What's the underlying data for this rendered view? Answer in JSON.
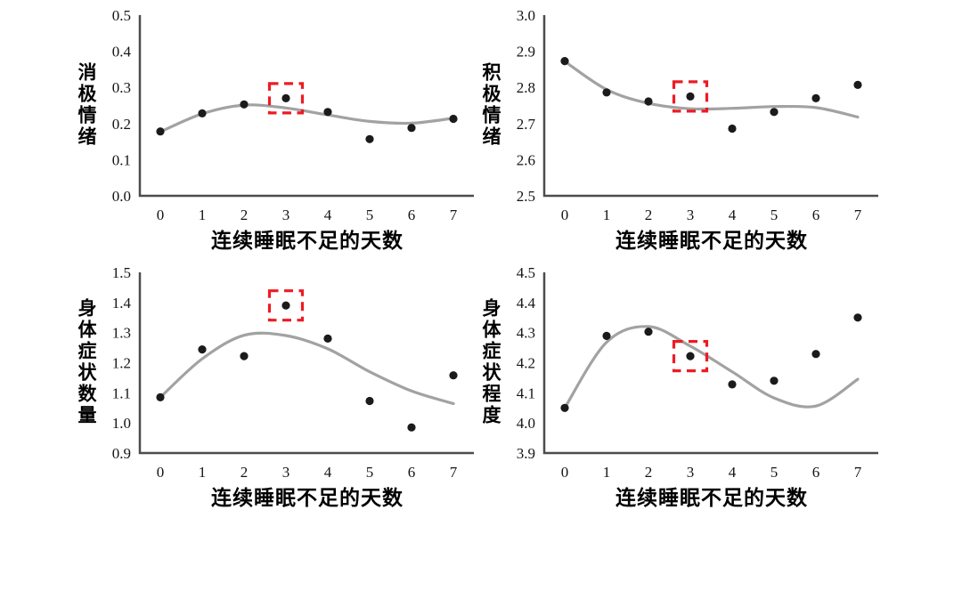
{
  "figure": {
    "background": "#ffffff",
    "layout": "2x2-panel-grid",
    "highlight_note": "red dashed box marks day-3 data point in every panel"
  },
  "colors": {
    "point": "#1b1b1b",
    "line": "#a2a2a2",
    "axis": "#4c4c4e",
    "tick_text": "#141414",
    "highlight": "#ec1c24"
  },
  "chart_data": [
    {
      "type": "scatter",
      "panel": "top-left",
      "ylabel": "消极情绪",
      "xlabel": "连续睡眠不足的天数",
      "x": [
        0,
        1,
        2,
        3,
        4,
        5,
        6,
        7
      ],
      "xticks": [
        "0",
        "1",
        "2",
        "3",
        "4",
        "5",
        "6",
        "7"
      ],
      "points": [
        0.178,
        0.228,
        0.253,
        0.27,
        0.232,
        0.157,
        0.188,
        0.213
      ],
      "fit_line": [
        0.177,
        0.227,
        0.251,
        0.243,
        0.224,
        0.206,
        0.201,
        0.215
      ],
      "ylim": [
        0.0,
        0.5
      ],
      "yticks": [
        "0.0",
        "0.1",
        "0.2",
        "0.3",
        "0.4",
        "0.5"
      ],
      "highlight_index": 3,
      "grid": false,
      "legend": "none"
    },
    {
      "type": "scatter",
      "panel": "top-right",
      "ylabel": "积极情绪",
      "xlabel": "连续睡眠不足的天数",
      "x": [
        0,
        1,
        2,
        3,
        4,
        5,
        6,
        7
      ],
      "xticks": [
        "0",
        "1",
        "2",
        "3",
        "4",
        "5",
        "6",
        "7"
      ],
      "points": [
        2.873,
        2.786,
        2.761,
        2.775,
        2.686,
        2.732,
        2.77,
        2.807
      ],
      "fit_line": [
        2.872,
        2.794,
        2.756,
        2.741,
        2.742,
        2.747,
        2.744,
        2.718
      ],
      "ylim": [
        2.5,
        3.0
      ],
      "yticks": [
        "2.5",
        "2.6",
        "2.7",
        "2.8",
        "2.9",
        "3.0"
      ],
      "highlight_index": 3,
      "grid": false,
      "legend": "none"
    },
    {
      "type": "scatter",
      "panel": "bottom-left",
      "ylabel": "身体症状数量",
      "xlabel": "连续睡眠不足的天数",
      "x": [
        0,
        1,
        2,
        3,
        4,
        5,
        6,
        7
      ],
      "xticks": [
        "0",
        "1",
        "2",
        "3",
        "4",
        "5",
        "6",
        "7"
      ],
      "points": [
        1.085,
        1.244,
        1.222,
        1.39,
        1.28,
        1.073,
        0.985,
        1.158
      ],
      "fit_line": [
        1.085,
        1.213,
        1.291,
        1.29,
        1.246,
        1.17,
        1.106,
        1.064
      ],
      "ylim": [
        0.9,
        1.5
      ],
      "yticks": [
        "0.9",
        "1.0",
        "1.1",
        "1.2",
        "1.3",
        "1.4",
        "1.5"
      ],
      "highlight_index": 3,
      "grid": false,
      "legend": "none"
    },
    {
      "type": "scatter",
      "panel": "bottom-right",
      "ylabel": "身体症状程度",
      "xlabel": "连续睡眠不足的天数",
      "x": [
        0,
        1,
        2,
        3,
        4,
        5,
        6,
        7
      ],
      "xticks": [
        "0",
        "1",
        "2",
        "3",
        "4",
        "5",
        "6",
        "7"
      ],
      "points": [
        4.05,
        4.289,
        4.303,
        4.222,
        4.128,
        4.14,
        4.229,
        4.35
      ],
      "fit_line": [
        4.05,
        4.268,
        4.32,
        4.255,
        4.17,
        4.083,
        4.056,
        4.145
      ],
      "ylim": [
        3.9,
        4.5
      ],
      "yticks": [
        "3.9",
        "4.0",
        "4.1",
        "4.2",
        "4.3",
        "4.4",
        "4.5"
      ],
      "highlight_index": 3,
      "grid": false,
      "legend": "none"
    }
  ]
}
